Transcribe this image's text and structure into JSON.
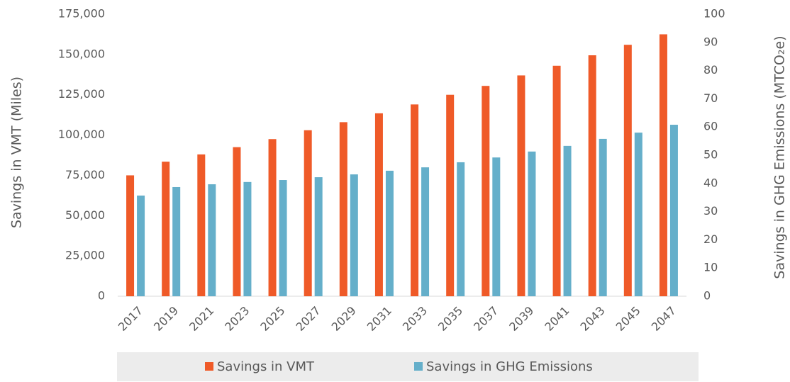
{
  "chart_data": {
    "type": "bar",
    "y_label": "Savings in VMT (Miles)",
    "y2_label": "Savings in GHG Emissions (MTCO₂e)",
    "categories": [
      "2017",
      "2019",
      "2021",
      "2023",
      "2025",
      "2027",
      "2029",
      "2031",
      "2033",
      "2035",
      "2037",
      "2039",
      "2041",
      "2043",
      "2045",
      "2047"
    ],
    "series": [
      {
        "name": "Savings in VMT",
        "color": "#ef5a28",
        "axis": "y",
        "values": [
          75000,
          83500,
          88000,
          92500,
          97500,
          103000,
          108000,
          113500,
          119000,
          125000,
          130500,
          137000,
          143000,
          149500,
          156000,
          162500
        ]
      },
      {
        "name": "Savings in GHG Emissions",
        "color": "#65afca",
        "axis": "y2",
        "values": [
          35.7,
          38.7,
          39.7,
          40.5,
          41.2,
          42.2,
          43.2,
          44.5,
          45.7,
          47.5,
          49.2,
          51.3,
          53.3,
          55.8,
          58.0,
          60.8
        ]
      }
    ],
    "ylim": [
      0,
      175000
    ],
    "yticks": [
      0,
      {
        "value": 25000,
        "label": "25,000"
      },
      {
        "value": 50000,
        "label": "50,000"
      },
      {
        "value": 75000,
        "label": "75,000"
      },
      {
        "value": 100000,
        "label": "100,000"
      },
      {
        "value": 125000,
        "label": "125,000"
      },
      {
        "value": 150000,
        "label": "150,000"
      },
      {
        "value": 175000,
        "label": "175,000"
      }
    ],
    "y2lim": [
      0,
      100
    ],
    "y2ticks": [
      0,
      10,
      20,
      30,
      40,
      50,
      60,
      70,
      80,
      90,
      100
    ],
    "grid": false,
    "legend": "bottom"
  }
}
